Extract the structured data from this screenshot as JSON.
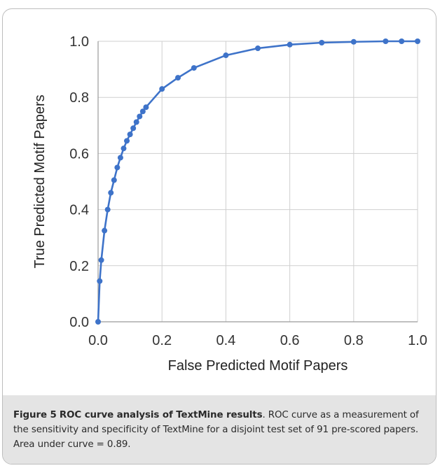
{
  "chart_data": {
    "type": "line",
    "xlabel": "False Predicted Motif Papers",
    "ylabel": "True Predicted Motif Papers",
    "xlim": [
      0.0,
      1.0
    ],
    "ylim": [
      0.0,
      1.0
    ],
    "x_ticks": [
      "0.0",
      "0.2",
      "0.4",
      "0.6",
      "0.8",
      "1.0"
    ],
    "y_ticks": [
      "0.0",
      "0.2",
      "0.4",
      "0.6",
      "0.8",
      "1.0"
    ],
    "grid": true,
    "legend": "none",
    "series": [
      {
        "color": "#3e73c9",
        "x": [
          0.0,
          0.005,
          0.01,
          0.02,
          0.03,
          0.04,
          0.05,
          0.06,
          0.07,
          0.08,
          0.09,
          0.1,
          0.11,
          0.12,
          0.13,
          0.14,
          0.15,
          0.2,
          0.25,
          0.3,
          0.4,
          0.5,
          0.6,
          0.7,
          0.8,
          0.9,
          0.95,
          1.0
        ],
        "y": [
          0.0,
          0.145,
          0.22,
          0.325,
          0.4,
          0.46,
          0.505,
          0.55,
          0.585,
          0.618,
          0.645,
          0.668,
          0.69,
          0.712,
          0.732,
          0.75,
          0.765,
          0.83,
          0.87,
          0.905,
          0.95,
          0.975,
          0.988,
          0.995,
          0.998,
          1.0,
          1.0,
          1.0
        ]
      }
    ]
  },
  "caption": {
    "label": "Figure 5",
    "title": "ROC curve analysis of TextMine results",
    "text": ". ROC curve as a measurement of the sensitivity and specificity of TextMine for a disjoint test set of 91 pre-scored papers. Area under curve = 0.89."
  }
}
